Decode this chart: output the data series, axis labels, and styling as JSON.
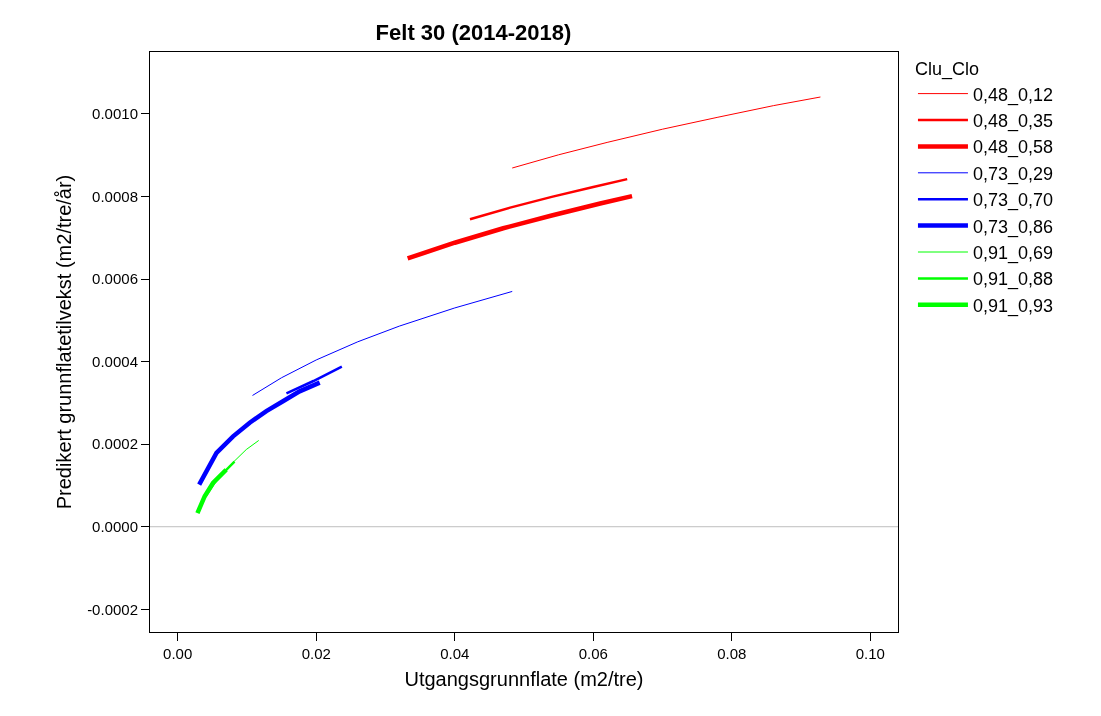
{
  "chart_data": {
    "type": "line",
    "title": "Felt 30 (2014-2018)",
    "xlabel": "Utgangsgrunnflate (m2/tre)",
    "ylabel": "Predikert grunnflatetilvekst (m2/tre/år)",
    "legend_title": "Clu_Clo",
    "legend": "right",
    "grid": false,
    "marker": "none",
    "line_style": "solid",
    "xlim": [
      -0.004,
      0.104
    ],
    "ylim": [
      -0.000255,
      0.00115
    ],
    "xticks": [
      {
        "value": 0,
        "label": "0.00"
      },
      {
        "value": 0.02,
        "label": "0.02"
      },
      {
        "value": 0.04,
        "label": "0.04"
      },
      {
        "value": 0.06,
        "label": "0.06"
      },
      {
        "value": 0.08,
        "label": "0.08"
      },
      {
        "value": 0.1,
        "label": "0.10"
      }
    ],
    "yticks": [
      {
        "value": -0.0002,
        "label": "-0.0002"
      },
      {
        "value": 0,
        "label": "0.0000"
      },
      {
        "value": 0.0002,
        "label": "0.0002"
      },
      {
        "value": 0.0004,
        "label": "0.0004"
      },
      {
        "value": 0.0006,
        "label": "0.0006"
      },
      {
        "value": 0.0008,
        "label": "0.0008"
      },
      {
        "value": 0.001,
        "label": "0.0010"
      }
    ],
    "ref_lines": [
      {
        "axis": "y",
        "value": 0,
        "color": "#bebebe"
      }
    ],
    "series": [
      {
        "name": "0,48_0,12",
        "color": "#ff0000",
        "x": [
          0.0483,
          0.055,
          0.062,
          0.07,
          0.078,
          0.086,
          0.0928
        ],
        "values": [
          0.000869,
          0.000901,
          0.000931,
          0.000963,
          0.000992,
          0.00102,
          0.001041
        ]
      },
      {
        "name": "0,48_0,35",
        "color": "#ff0000",
        "x": [
          0.0422,
          0.048,
          0.054,
          0.06,
          0.0649
        ],
        "values": [
          0.000745,
          0.000773,
          0.000799,
          0.000823,
          0.000842
        ]
      },
      {
        "name": "0,48_0,58",
        "color": "#ff0000",
        "x": [
          0.0332,
          0.04,
          0.047,
          0.054,
          0.061,
          0.0656
        ],
        "values": [
          0.00065,
          0.000688,
          0.000723,
          0.000754,
          0.000783,
          0.000801
        ]
      },
      {
        "name": "0,73_0,29",
        "color": "#0000ff",
        "x": [
          0.0108,
          0.015,
          0.02,
          0.026,
          0.032,
          0.04,
          0.0483
        ],
        "values": [
          0.000318,
          0.000361,
          0.000404,
          0.000448,
          0.000486,
          0.00053,
          0.00057
        ]
      },
      {
        "name": "0,73_0,70",
        "color": "#0000ff",
        "x": [
          0.0157,
          0.0196,
          0.0237
        ],
        "values": [
          0.000323,
          0.000353,
          0.000388
        ]
      },
      {
        "name": "0,73_0,86",
        "color": "#0000ff",
        "x": [
          0.0031,
          0.0056,
          0.008,
          0.0104,
          0.0128,
          0.0152,
          0.0176,
          0.0205
        ],
        "values": [
          0.000102,
          0.000179,
          0.000219,
          0.000252,
          0.00028,
          0.000304,
          0.000328,
          0.000349
        ]
      },
      {
        "name": "0,91_0,69",
        "color": "#00ff00",
        "x": [
          0.008,
          0.0099,
          0.0117
        ],
        "values": [
          0.000156,
          0.000187,
          0.000209
        ]
      },
      {
        "name": "0,91_0,88",
        "color": "#00ff00",
        "x": [
          0.0037,
          0.0056,
          0.0082
        ],
        "values": [
          6.6e-05,
          0.000114,
          0.000158
        ]
      },
      {
        "name": "0,91_0,93",
        "color": "#00ff00",
        "x": [
          0.00285,
          0.0039,
          0.0051,
          0.007
        ],
        "values": [
          3.3e-05,
          7.4e-05,
          0.000106,
          0.000138
        ]
      }
    ]
  }
}
